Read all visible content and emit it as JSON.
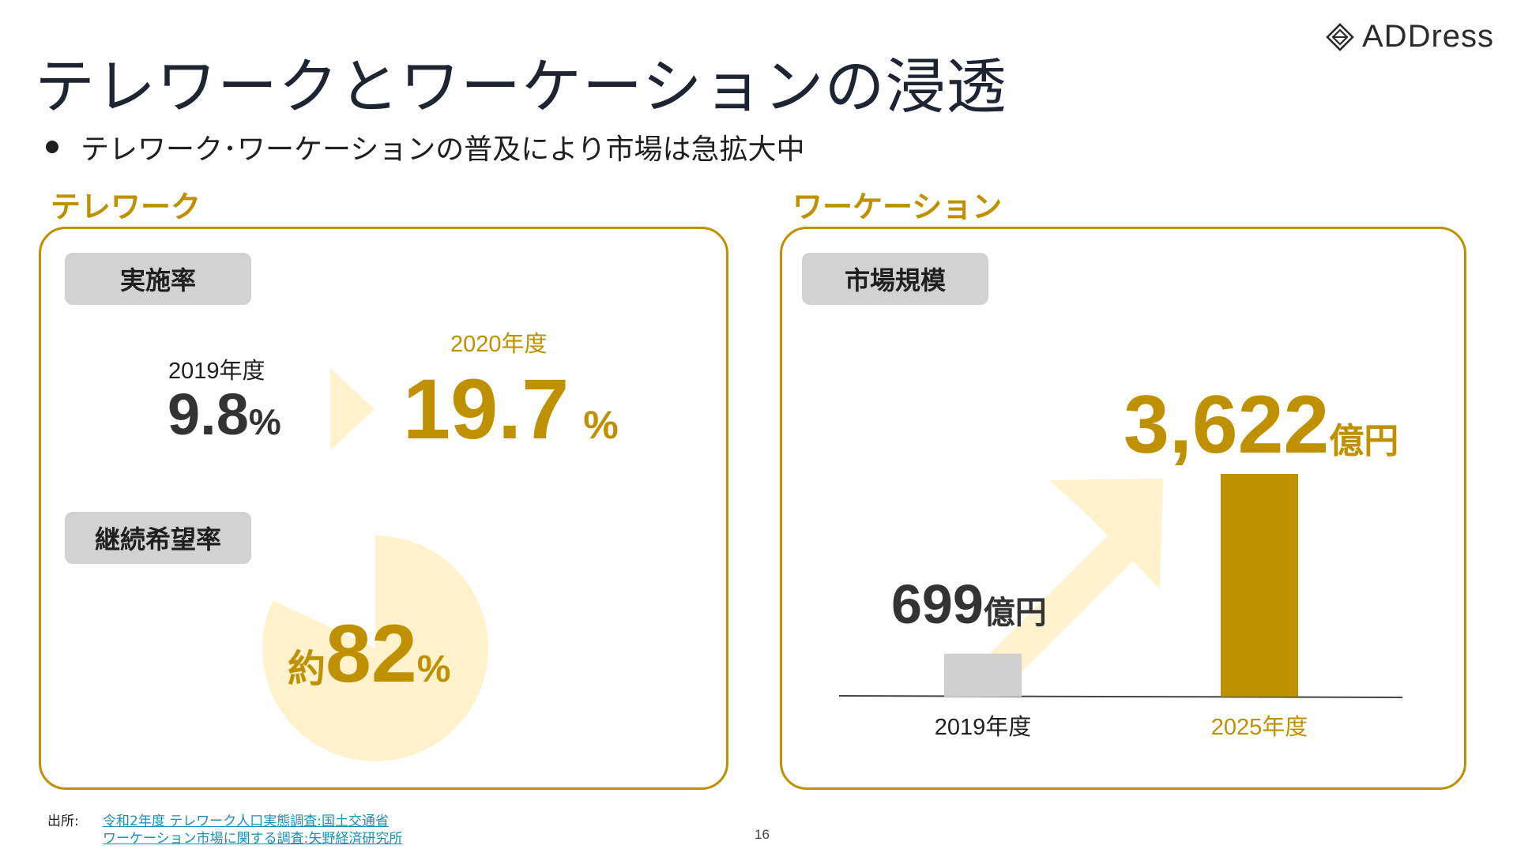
{
  "header": {
    "title": "テレワークとワーケーションの浸透",
    "brand": "ADDress",
    "bullet": "テレワーク･ワーケーションの普及により市場は急拡大中"
  },
  "telework": {
    "heading": "テレワーク",
    "rate_pill": "実施率",
    "year_2019": "2019年度",
    "value_2019": "9.8",
    "year_2020": "2020年度",
    "value_2020": "19.7",
    "percent": "%",
    "continue_pill": "継続希望率",
    "approx": "約",
    "continue_value": "82",
    "continue_fraction": 0.82
  },
  "workcation": {
    "heading": "ワーケーション",
    "size_pill": "市場規模",
    "value_2019": "699",
    "value_2025": "3,622",
    "unit": "億円"
  },
  "chart_data": {
    "type": "bar",
    "categories": [
      "2019年度",
      "2025年度"
    ],
    "values": [
      699,
      3622
    ],
    "colors": [
      "#d0d0d0",
      "#bf9000"
    ],
    "unit": "億円"
  },
  "footer": {
    "source_label": "出所:",
    "source_1": "令和2年度 テレワーク人口実態調査:国土交通省",
    "source_2": "ワーケーション市場に関する調査:矢野経済研究所",
    "page": "16"
  },
  "colors": {
    "accent": "#bf9000",
    "light_accent": "#fff2cc",
    "pill_gray": "#d2d2d2"
  }
}
